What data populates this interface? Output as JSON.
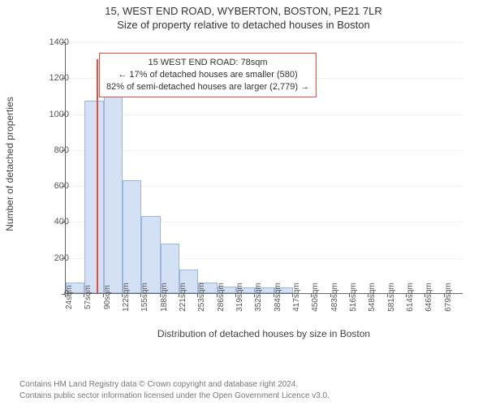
{
  "title": {
    "line1": "15, WEST END ROAD, WYBERTON, BOSTON, PE21 7LR",
    "line2": "Size of property relative to detached houses in Boston",
    "fontsize": 13,
    "color": "#333333"
  },
  "chart": {
    "type": "histogram",
    "ylabel": "Number of detached properties",
    "xlabel": "Distribution of detached houses by size in Boston",
    "label_fontsize": 12,
    "ylim": [
      0,
      1400
    ],
    "ytick_step": 200,
    "yticks": [
      0,
      200,
      400,
      600,
      800,
      1000,
      1200,
      1400
    ],
    "xtick_labels": [
      "24sqm",
      "57sqm",
      "90sqm",
      "122sqm",
      "155sqm",
      "188sqm",
      "221sqm",
      "253sqm",
      "286sqm",
      "319sqm",
      "352sqm",
      "384sqm",
      "417sqm",
      "450sqm",
      "483sqm",
      "516sqm",
      "548sqm",
      "581sqm",
      "614sqm",
      "646sqm",
      "679sqm"
    ],
    "bars": [
      {
        "i": 0,
        "value": 60
      },
      {
        "i": 1,
        "value": 1070
      },
      {
        "i": 2,
        "value": 1160
      },
      {
        "i": 3,
        "value": 630
      },
      {
        "i": 4,
        "value": 430
      },
      {
        "i": 5,
        "value": 275
      },
      {
        "i": 6,
        "value": 130
      },
      {
        "i": 7,
        "value": 60
      },
      {
        "i": 8,
        "value": 35
      },
      {
        "i": 9,
        "value": 30
      },
      {
        "i": 10,
        "value": 30
      },
      {
        "i": 11,
        "value": 30
      }
    ],
    "bar_fill": "#d4e1f5",
    "bar_stroke": "#9cb6dc",
    "grid_color": "#eeeeee",
    "axis_color": "#666666",
    "background_color": "#ffffff",
    "marker": {
      "bin_index": 1,
      "fraction_in_bin": 0.64,
      "height_value": 1300,
      "color": "#e74c3c"
    },
    "annotation": {
      "lines": [
        "15 WEST END ROAD: 78sqm",
        "← 17% of detached houses are smaller (580)",
        "82% of semi-detached houses are larger (2,779) →"
      ],
      "border_color": "#e74c3c",
      "bg_color": "#ffffff",
      "fontsize": 11,
      "left_bin_index": 1,
      "top_value": 1340
    }
  },
  "footer": {
    "line1": "Contains HM Land Registry data © Crown copyright and database right 2024.",
    "line2": "Contains public sector information licensed under the Open Government Licence v3.0.",
    "fontsize": 10,
    "color": "#777777"
  }
}
